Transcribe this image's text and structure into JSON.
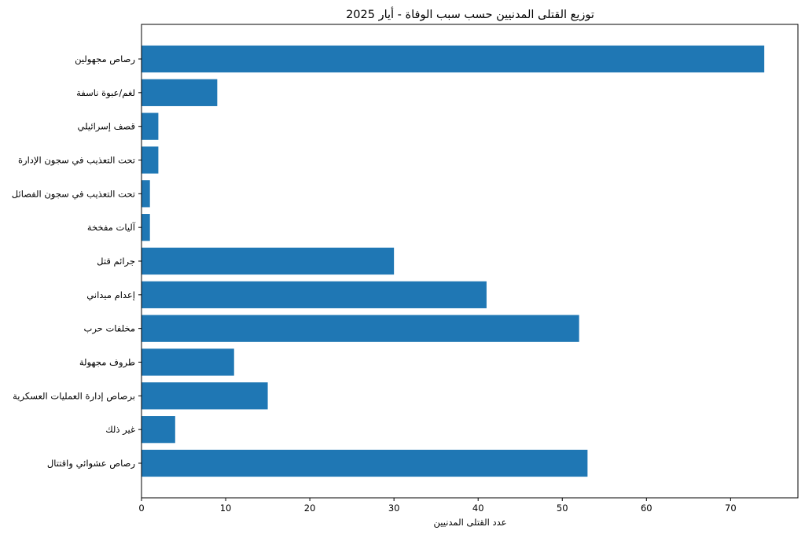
{
  "chart_data": {
    "type": "bar",
    "orientation": "horizontal",
    "title": "توزيع القتلى المدنيين حسب سبب الوفاة - أيار 2025",
    "xlabel": "عدد القتلى المدنيين",
    "ylabel": "",
    "xlim": [
      0,
      78
    ],
    "xticks": [
      0,
      10,
      20,
      30,
      40,
      50,
      60,
      70
    ],
    "grid": false,
    "bar_color": "#1f77b4",
    "categories": [
      "رصاص مجهولين",
      "لغم/عبوة ناسفة",
      "قصف إسرائيلي",
      "تحت التعذيب في سجون الإدارة",
      "تحت التعذيب في سجون الفصائل",
      "آليات مفخخة",
      "جرائم قتل",
      "إعدام ميداني",
      "مخلفات حرب",
      "طروف مجهولة",
      "برصاص إدارة العمليات العسكرية",
      "غير ذلك",
      "رصاص عشوائي واقتتال"
    ],
    "values": [
      74,
      9,
      2,
      2,
      1,
      1,
      30,
      41,
      52,
      11,
      15,
      4,
      53
    ]
  }
}
